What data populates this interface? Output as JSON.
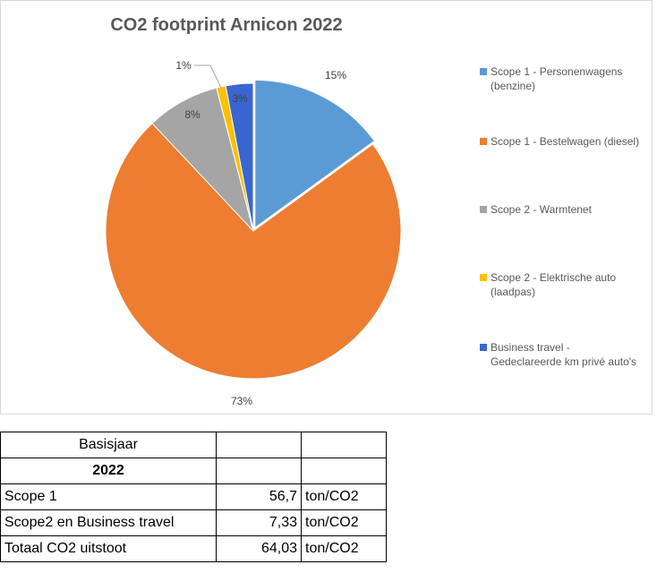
{
  "chart_data": {
    "type": "pie",
    "title": "CO2 footprint  Arnicon 2022",
    "categories": [
      "Scope 1 - Personenwagens (benzine)",
      "Scope 1 - Bestelwagen (diesel)",
      "Scope 2 - Warmtenet",
      "Scope 2 - Elektrische auto (laadpas)",
      "Business travel - Gedeclareerde km privé auto's"
    ],
    "values": [
      15,
      73,
      8,
      1,
      3
    ],
    "value_labels": [
      "15%",
      "73%",
      "8%",
      "1%",
      "3%"
    ],
    "colors": [
      "#5b9bd5",
      "#ed7d31",
      "#a5a5a5",
      "#ffc000",
      "#3a66d0"
    ],
    "legend": "right"
  },
  "table": {
    "header": "Basisjaar",
    "year": "2022",
    "rows": [
      {
        "label": "Scope 1",
        "value": "56,7",
        "unit": "ton/CO2"
      },
      {
        "label": "Scope2 en Business travel",
        "value": "7,33",
        "unit": "ton/CO2"
      },
      {
        "label": "Totaal CO2 uitstoot",
        "value": "64,03",
        "unit": "ton/CO2"
      }
    ]
  }
}
